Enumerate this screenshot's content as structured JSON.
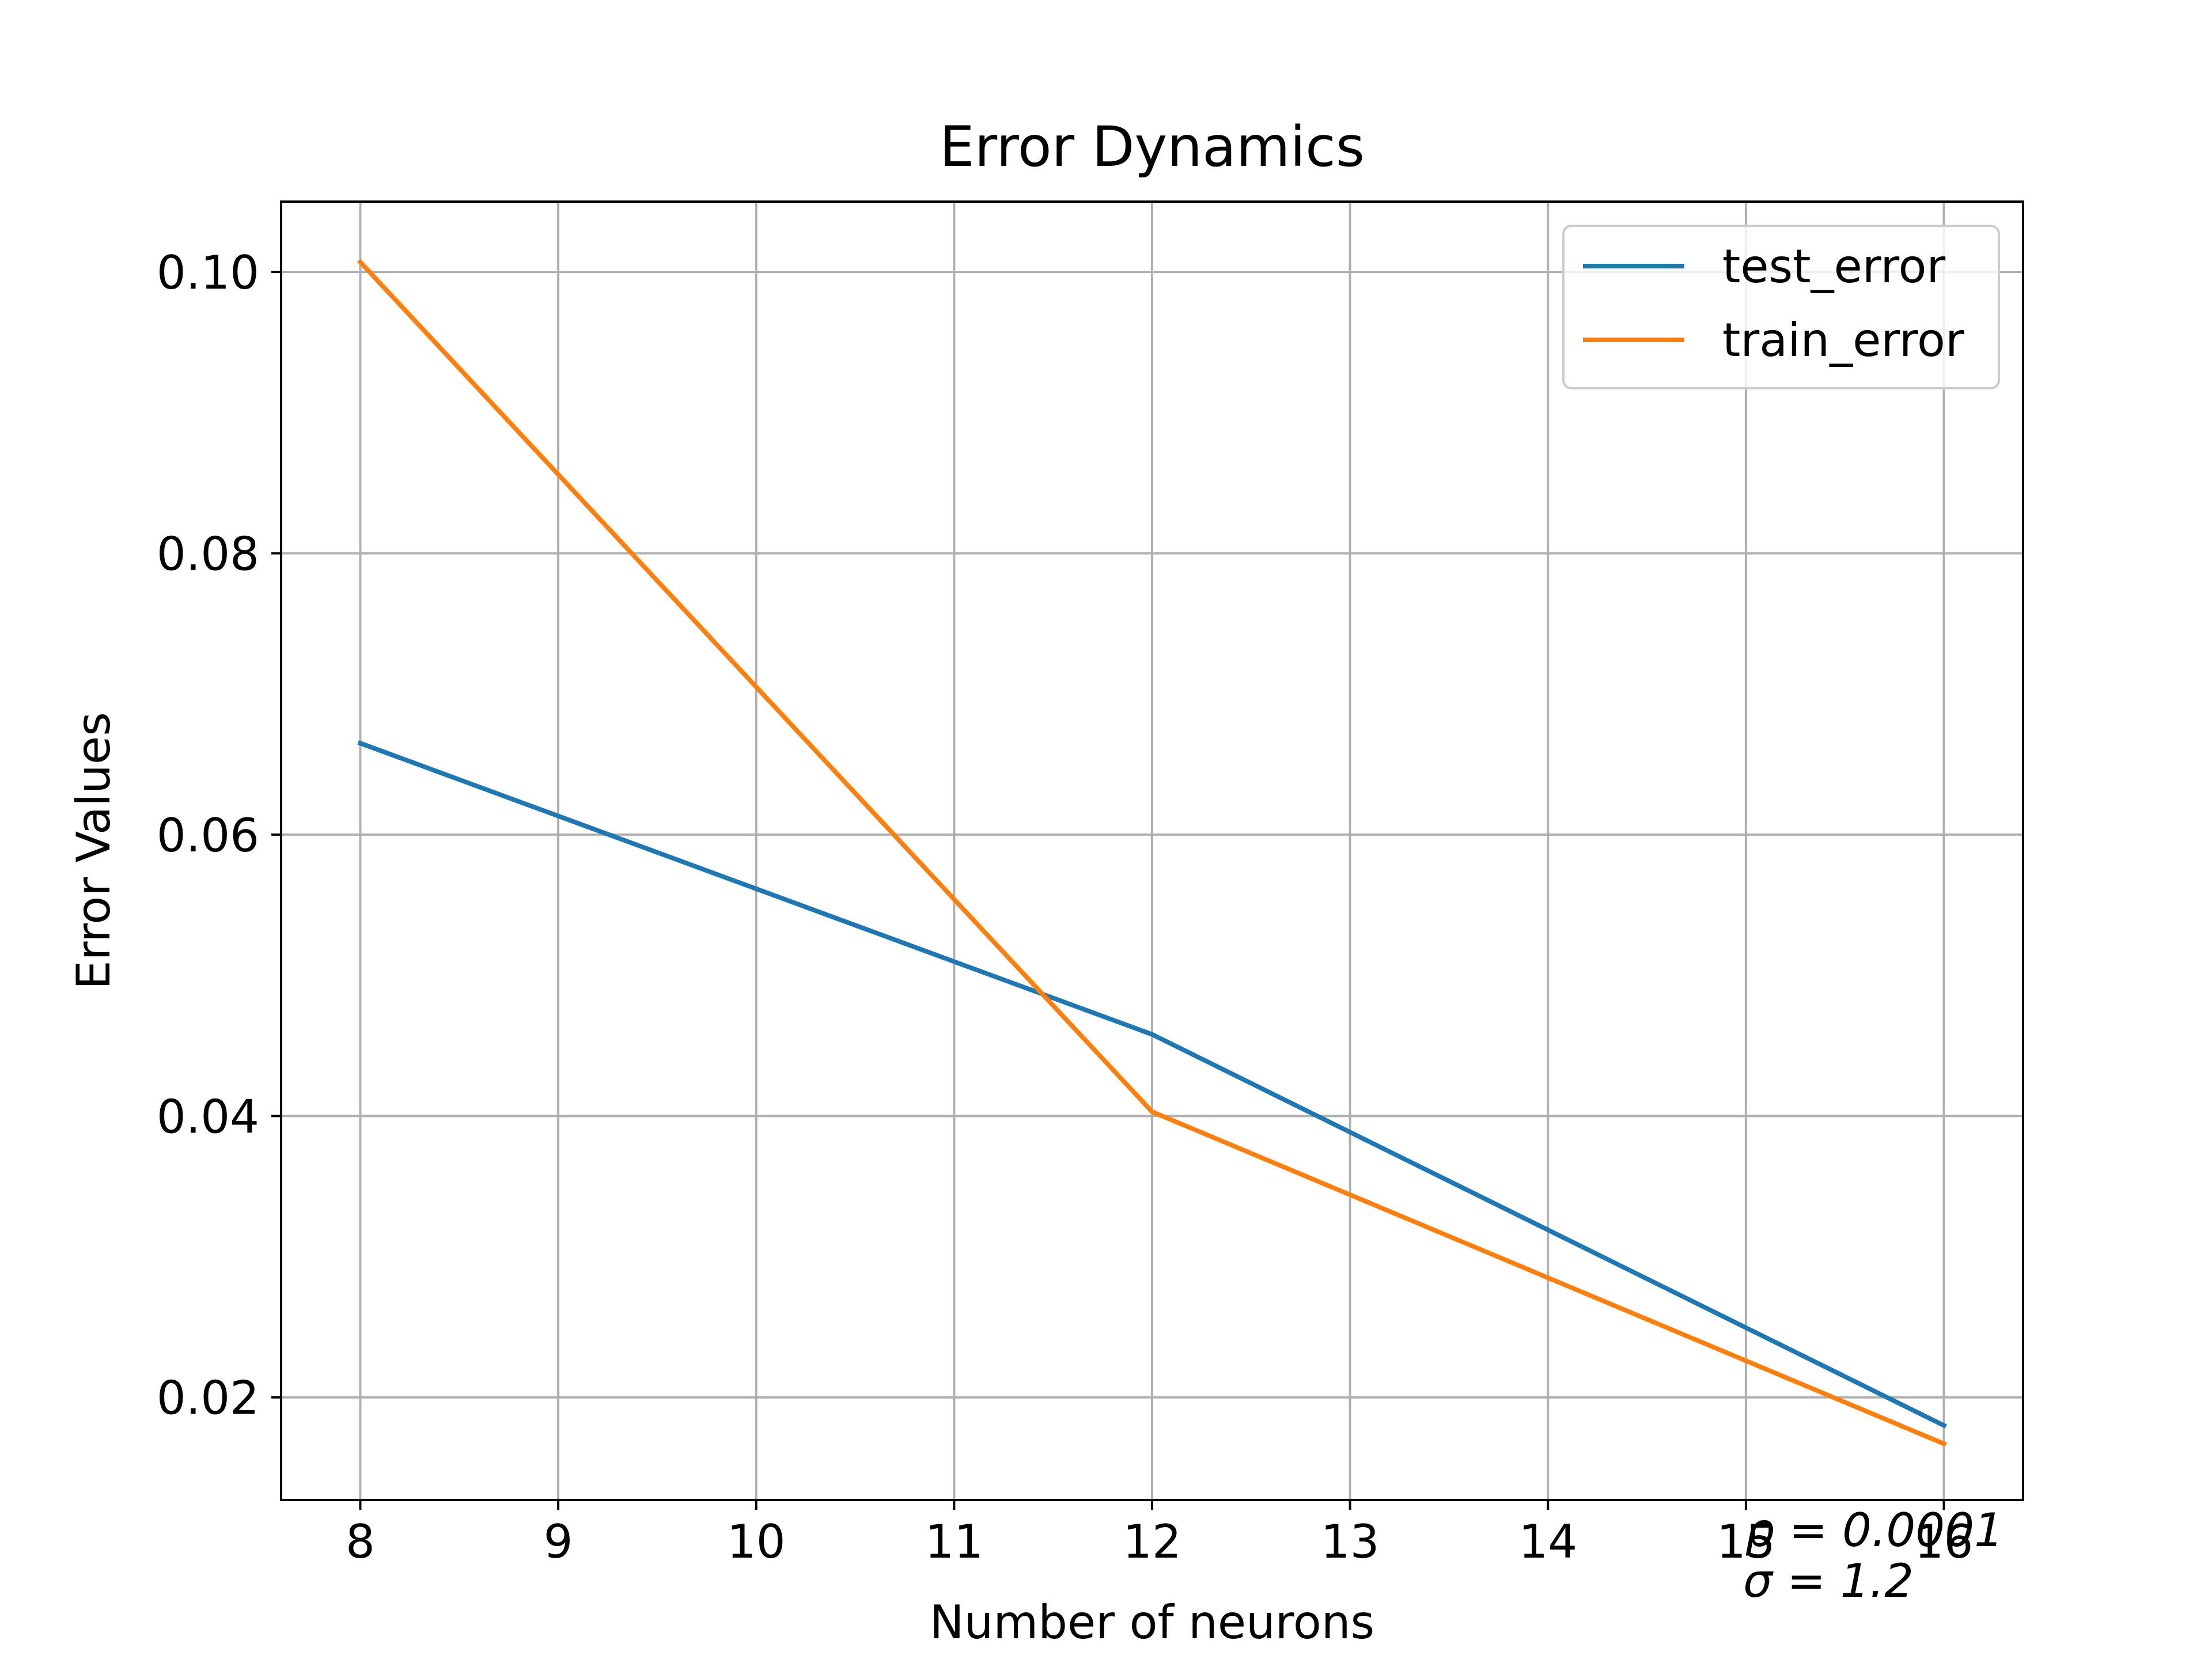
{
  "chart_data": {
    "type": "line",
    "title": "Error Dynamics",
    "xlabel": "Number of neurons",
    "ylabel": "Error Values",
    "x": [
      8,
      12,
      16
    ],
    "series": [
      {
        "name": "test_error",
        "color": "#1f77b4",
        "values": [
          0.0665,
          0.0458,
          0.018
        ]
      },
      {
        "name": "train_error",
        "color": "#ff7f0e",
        "values": [
          0.1007,
          0.0403,
          0.0167
        ]
      }
    ],
    "xlim": [
      7.6,
      16.4
    ],
    "ylim": [
      0.0127,
      0.105
    ],
    "xticks": [
      8,
      9,
      10,
      11,
      12,
      13,
      14,
      15,
      16
    ],
    "xtick_labels": [
      "8",
      "9",
      "10",
      "11",
      "12",
      "13",
      "14",
      "15",
      "16"
    ],
    "yticks": [
      0.02,
      0.04,
      0.06,
      0.08,
      0.1
    ],
    "ytick_labels": [
      "0.02",
      "0.04",
      "0.06",
      "0.08",
      "0.10"
    ],
    "grid": true,
    "legend_position": "top-right",
    "annotations": [
      "ρ = 0.0001",
      "σ = 1.2"
    ]
  }
}
